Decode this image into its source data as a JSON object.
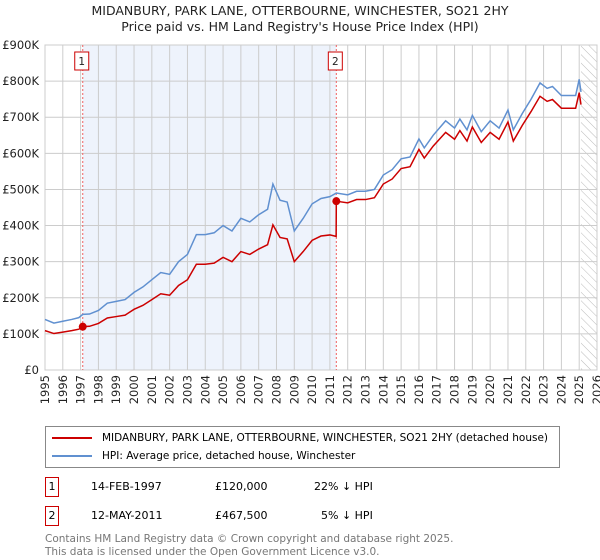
{
  "chart_data": {
    "type": "line",
    "title": "MIDANBURY, PARK LANE, OTTERBOURNE, WINCHESTER, SO21 2HY",
    "subtitle": "Price paid vs. HM Land Registry's House Price Index (HPI)",
    "xlim": [
      1995,
      2026
    ],
    "ylim": [
      0,
      900000
    ],
    "yticks": [
      {
        "v": 0,
        "label": "£0"
      },
      {
        "v": 100000,
        "label": "£100K"
      },
      {
        "v": 200000,
        "label": "£200K"
      },
      {
        "v": 300000,
        "label": "£300K"
      },
      {
        "v": 400000,
        "label": "£400K"
      },
      {
        "v": 500000,
        "label": "£500K"
      },
      {
        "v": 600000,
        "label": "£600K"
      },
      {
        "v": 700000,
        "label": "£700K"
      },
      {
        "v": 800000,
        "label": "£800K"
      },
      {
        "v": 900000,
        "label": "£900K"
      }
    ],
    "xticks": [
      "1995",
      "1996",
      "1997",
      "1998",
      "1999",
      "2000",
      "2001",
      "2002",
      "2003",
      "2004",
      "2005",
      "2006",
      "2007",
      "2008",
      "2009",
      "2010",
      "2011",
      "2012",
      "2013",
      "2014",
      "2015",
      "2016",
      "2017",
      "2018",
      "2019",
      "2020",
      "2021",
      "2022",
      "2023",
      "2024",
      "2025",
      "2026"
    ],
    "grid": true,
    "forecast_start": 2025.1,
    "colors": {
      "property": "#cc0000",
      "hpi": "#6090d0",
      "shade": "#eef3fc"
    },
    "series": [
      {
        "name": "MIDANBURY, PARK LANE, OTTERBOURNE, WINCHESTER, SO21 2HY (detached house)",
        "key": "property",
        "points": [
          [
            1995,
            109
          ],
          [
            1995.5,
            101
          ],
          [
            1996,
            105
          ],
          [
            1996.5,
            109
          ],
          [
            1996.9,
            113
          ],
          [
            1997.12,
            120
          ],
          [
            1997.5,
            121
          ],
          [
            1998,
            129
          ],
          [
            1998.5,
            144
          ],
          [
            1999,
            148
          ],
          [
            1999.5,
            152
          ],
          [
            2000,
            168
          ],
          [
            2000.5,
            179
          ],
          [
            2001,
            195
          ],
          [
            2001.5,
            211
          ],
          [
            2002,
            207
          ],
          [
            2002.5,
            234
          ],
          [
            2003,
            250
          ],
          [
            2003.5,
            293
          ],
          [
            2004,
            293
          ],
          [
            2004.5,
            296
          ],
          [
            2005,
            312
          ],
          [
            2005.5,
            300
          ],
          [
            2006,
            328
          ],
          [
            2006.5,
            320
          ],
          [
            2007,
            335
          ],
          [
            2007.5,
            347
          ],
          [
            2007.8,
            402
          ],
          [
            2008.2,
            367
          ],
          [
            2008.6,
            363
          ],
          [
            2009,
            300
          ],
          [
            2009.5,
            328
          ],
          [
            2010,
            359
          ],
          [
            2010.5,
            371
          ],
          [
            2011,
            374
          ],
          [
            2011.35,
            370
          ],
          [
            2011.36,
            467.5
          ],
          [
            2012,
            463
          ],
          [
            2012.5,
            472
          ],
          [
            2013,
            472
          ],
          [
            2013.5,
            477
          ],
          [
            2014,
            515
          ],
          [
            2014.5,
            529
          ],
          [
            2015,
            558
          ],
          [
            2015.5,
            563
          ],
          [
            2016,
            611
          ],
          [
            2016.3,
            587
          ],
          [
            2016.8,
            620
          ],
          [
            2017.5,
            658
          ],
          [
            2018,
            639
          ],
          [
            2018.3,
            663
          ],
          [
            2018.7,
            634
          ],
          [
            2019,
            673
          ],
          [
            2019.5,
            630
          ],
          [
            2020,
            658
          ],
          [
            2020.5,
            639
          ],
          [
            2021,
            687
          ],
          [
            2021.3,
            634
          ],
          [
            2021.8,
            677
          ],
          [
            2022.3,
            716
          ],
          [
            2022.8,
            758
          ],
          [
            2023.2,
            744
          ],
          [
            2023.5,
            749
          ],
          [
            2024,
            725
          ],
          [
            2024.5,
            725
          ],
          [
            2024.8,
            725
          ],
          [
            2025,
            768
          ],
          [
            2025.1,
            735
          ]
        ]
      },
      {
        "name": "HPI: Average price, detached house, Winchester",
        "key": "hpi",
        "points": [
          [
            1995,
            140
          ],
          [
            1995.5,
            130
          ],
          [
            1996,
            135
          ],
          [
            1996.5,
            140
          ],
          [
            1996.9,
            145
          ],
          [
            1997.12,
            154
          ],
          [
            1997.5,
            155
          ],
          [
            1998,
            165
          ],
          [
            1998.5,
            185
          ],
          [
            1999,
            190
          ],
          [
            1999.5,
            195
          ],
          [
            2000,
            215
          ],
          [
            2000.5,
            230
          ],
          [
            2001,
            250
          ],
          [
            2001.5,
            270
          ],
          [
            2002,
            265
          ],
          [
            2002.5,
            300
          ],
          [
            2003,
            320
          ],
          [
            2003.5,
            375
          ],
          [
            2004,
            375
          ],
          [
            2004.5,
            380
          ],
          [
            2005,
            400
          ],
          [
            2005.5,
            385
          ],
          [
            2006,
            420
          ],
          [
            2006.5,
            410
          ],
          [
            2007,
            430
          ],
          [
            2007.5,
            445
          ],
          [
            2007.8,
            515
          ],
          [
            2008.2,
            470
          ],
          [
            2008.6,
            465
          ],
          [
            2009,
            385
          ],
          [
            2009.5,
            420
          ],
          [
            2010,
            460
          ],
          [
            2010.5,
            475
          ],
          [
            2011,
            480
          ],
          [
            2011.36,
            490
          ],
          [
            2012,
            485
          ],
          [
            2012.5,
            495
          ],
          [
            2013,
            495
          ],
          [
            2013.5,
            500
          ],
          [
            2014,
            540
          ],
          [
            2014.5,
            555
          ],
          [
            2015,
            585
          ],
          [
            2015.5,
            590
          ],
          [
            2016,
            640
          ],
          [
            2016.3,
            615
          ],
          [
            2016.8,
            650
          ],
          [
            2017.5,
            690
          ],
          [
            2018,
            670
          ],
          [
            2018.3,
            695
          ],
          [
            2018.7,
            665
          ],
          [
            2019,
            705
          ],
          [
            2019.5,
            660
          ],
          [
            2020,
            690
          ],
          [
            2020.5,
            670
          ],
          [
            2021,
            720
          ],
          [
            2021.3,
            665
          ],
          [
            2021.8,
            710
          ],
          [
            2022.3,
            750
          ],
          [
            2022.8,
            795
          ],
          [
            2023.2,
            780
          ],
          [
            2023.5,
            785
          ],
          [
            2024,
            760
          ],
          [
            2024.5,
            760
          ],
          [
            2024.8,
            760
          ],
          [
            2025,
            805
          ],
          [
            2025.1,
            770
          ]
        ]
      }
    ],
    "y_units": "thousands GBP",
    "sales": [
      {
        "id": "1",
        "x": 1997.12,
        "value": 120,
        "date": "14-FEB-1997",
        "price": "£120,000",
        "hpi_diff": "22% ↓ HPI"
      },
      {
        "id": "2",
        "x": 2011.36,
        "value": 467.5,
        "date": "12-MAY-2011",
        "price": "£467,500",
        "hpi_diff": "5% ↓ HPI"
      }
    ]
  },
  "footer": {
    "line1": "Contains HM Land Registry data © Crown copyright and database right 2025.",
    "line2": "This data is licensed under the Open Government Licence v3.0."
  }
}
